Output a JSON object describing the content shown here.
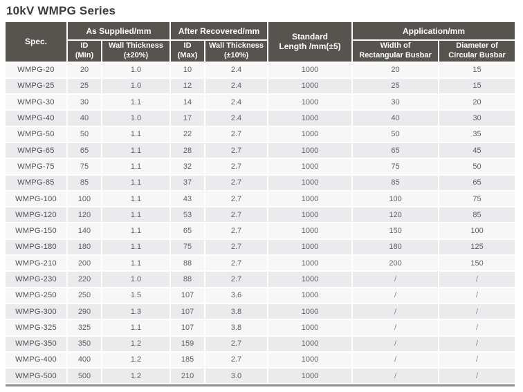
{
  "page": {
    "title": "10kV WMPG Series"
  },
  "table": {
    "headers": {
      "spec": "Spec.",
      "as_supplied": "As Supplied/mm",
      "after_recovered": "After Recovered/mm",
      "standard_length": [
        "Standard",
        "Length /mm(±5)"
      ],
      "application": "Application/mm",
      "id_min": [
        "ID",
        "(Min)"
      ],
      "wall_thickness_20": [
        "Wall Thickness",
        "(±20%)"
      ],
      "id_max": [
        "ID",
        "(Max)"
      ],
      "wall_thickness_10": [
        "Wall Thickness",
        "(±10%)"
      ],
      "width_rect_busbar": [
        "Width of",
        "Rectangular Busbar"
      ],
      "diameter_circ_busbar": [
        "Diameter of",
        "Circular Busbar"
      ]
    },
    "rows": [
      [
        "WMPG-20",
        "20",
        "1.0",
        "10",
        "2.4",
        "1000",
        "20",
        "15"
      ],
      [
        "WMPG-25",
        "25",
        "1.0",
        "12",
        "2.4",
        "1000",
        "25",
        "15"
      ],
      [
        "WMPG-30",
        "30",
        "1.1",
        "14",
        "2.4",
        "1000",
        "30",
        "20"
      ],
      [
        "WMPG-40",
        "40",
        "1.0",
        "17",
        "2.4",
        "1000",
        "40",
        "30"
      ],
      [
        "WMPG-50",
        "50",
        "1.1",
        "22",
        "2.7",
        "1000",
        "50",
        "35"
      ],
      [
        "WMPG-65",
        "65",
        "1.1",
        "28",
        "2.7",
        "1000",
        "65",
        "45"
      ],
      [
        "WMPG-75",
        "75",
        "1.1",
        "32",
        "2.7",
        "1000",
        "75",
        "50"
      ],
      [
        "WMPG-85",
        "85",
        "1.1",
        "37",
        "2.7",
        "1000",
        "85",
        "65"
      ],
      [
        "WMPG-100",
        "100",
        "1.1",
        "43",
        "2.7",
        "1000",
        "100",
        "75"
      ],
      [
        "WMPG-120",
        "120",
        "1.1",
        "53",
        "2.7",
        "1000",
        "120",
        "85"
      ],
      [
        "WMPG-150",
        "140",
        "1.1",
        "65",
        "2.7",
        "1000",
        "150",
        "100"
      ],
      [
        "WMPG-180",
        "180",
        "1.1",
        "75",
        "2.7",
        "1000",
        "180",
        "125"
      ],
      [
        "WMPG-210",
        "200",
        "1.1",
        "88",
        "2.7",
        "1000",
        "200",
        "150"
      ],
      [
        "WMPG-230",
        "220",
        "1.0",
        "88",
        "2.7",
        "1000",
        "/",
        "/"
      ],
      [
        "WMPG-250",
        "250",
        "1.5",
        "107",
        "3.6",
        "1000",
        "/",
        "/"
      ],
      [
        "WMPG-300",
        "290",
        "1.3",
        "107",
        "3.8",
        "1000",
        "/",
        "/"
      ],
      [
        "WMPG-325",
        "325",
        "1.1",
        "107",
        "3.8",
        "1000",
        "/",
        "/"
      ],
      [
        "WMPG-350",
        "350",
        "1.2",
        "159",
        "2.7",
        "1000",
        "/",
        "/"
      ],
      [
        "WMPG-400",
        "400",
        "1.2",
        "185",
        "2.7",
        "1000",
        "/",
        "/"
      ],
      [
        "WMPG-500",
        "500",
        "1.2",
        "210",
        "3.0",
        "1000",
        "/",
        "/"
      ]
    ],
    "colors": {
      "header_bg": "#57534f",
      "header_text": "#ffffff",
      "row_odd_bg": "#f7f7f8",
      "row_even_bg": "#ebebed",
      "gridline": "#ffffff",
      "bottom_rule": "#8d8d8d",
      "cell_text": "#5c6066",
      "title_text": "#3a3a3a"
    }
  }
}
